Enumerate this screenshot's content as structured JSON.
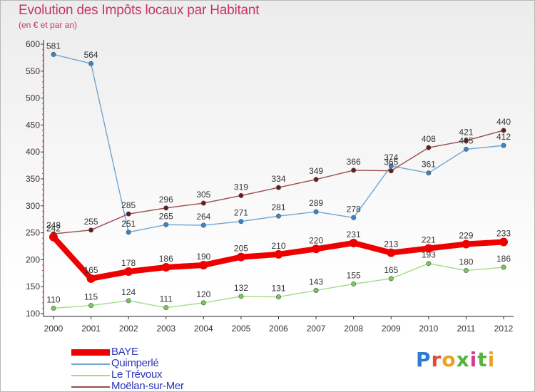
{
  "title": "Evolution des Impôts locaux par Habitant",
  "subtitle": "(en € et par an)",
  "brand": {
    "text": "Proxiti",
    "letter_colors": [
      "#2e7bd6",
      "#e04d2f",
      "#f0a020",
      "#56b33c",
      "#d83b8c",
      "#56b33c",
      "#f0a020"
    ]
  },
  "chart_data": {
    "type": "line",
    "title": "Evolution des Impôts locaux par Habitant",
    "subtitle": "(en € et par an)",
    "xlabel": "",
    "ylabel": "",
    "x": [
      "2000",
      "2001",
      "2002",
      "2003",
      "2004",
      "2005",
      "2006",
      "2007",
      "2008",
      "2009",
      "2010",
      "2011",
      "2012"
    ],
    "ylim": [
      100,
      600
    ],
    "yticks": [
      100,
      150,
      200,
      250,
      300,
      350,
      400,
      450,
      500,
      550,
      600
    ],
    "grid": false,
    "legend_position": "bottom-left",
    "series": [
      {
        "name": "BAYE",
        "color": "#ee0000",
        "emphasis": true,
        "values": [
          242,
          165,
          178,
          186,
          190,
          205,
          210,
          220,
          231,
          213,
          221,
          229,
          233
        ]
      },
      {
        "name": "Quimperlé",
        "color": "#6ea6d4",
        "marker": "#3a85c6",
        "emphasis": false,
        "values": [
          581,
          564,
          251,
          265,
          264,
          271,
          281,
          289,
          278,
          374,
          361,
          405,
          412
        ]
      },
      {
        "name": "Le Trévoux",
        "color": "#9ede84",
        "marker": "#78c85a",
        "emphasis": false,
        "values": [
          110,
          115,
          124,
          111,
          120,
          132,
          131,
          143,
          155,
          165,
          193,
          180,
          186
        ]
      },
      {
        "name": "Moëlan-sur-Mer",
        "color": "#9a4a4a",
        "marker": "#6a1c1c",
        "emphasis": false,
        "values": [
          248,
          255,
          285,
          296,
          305,
          319,
          334,
          349,
          366,
          365,
          408,
          421,
          440
        ]
      }
    ]
  }
}
